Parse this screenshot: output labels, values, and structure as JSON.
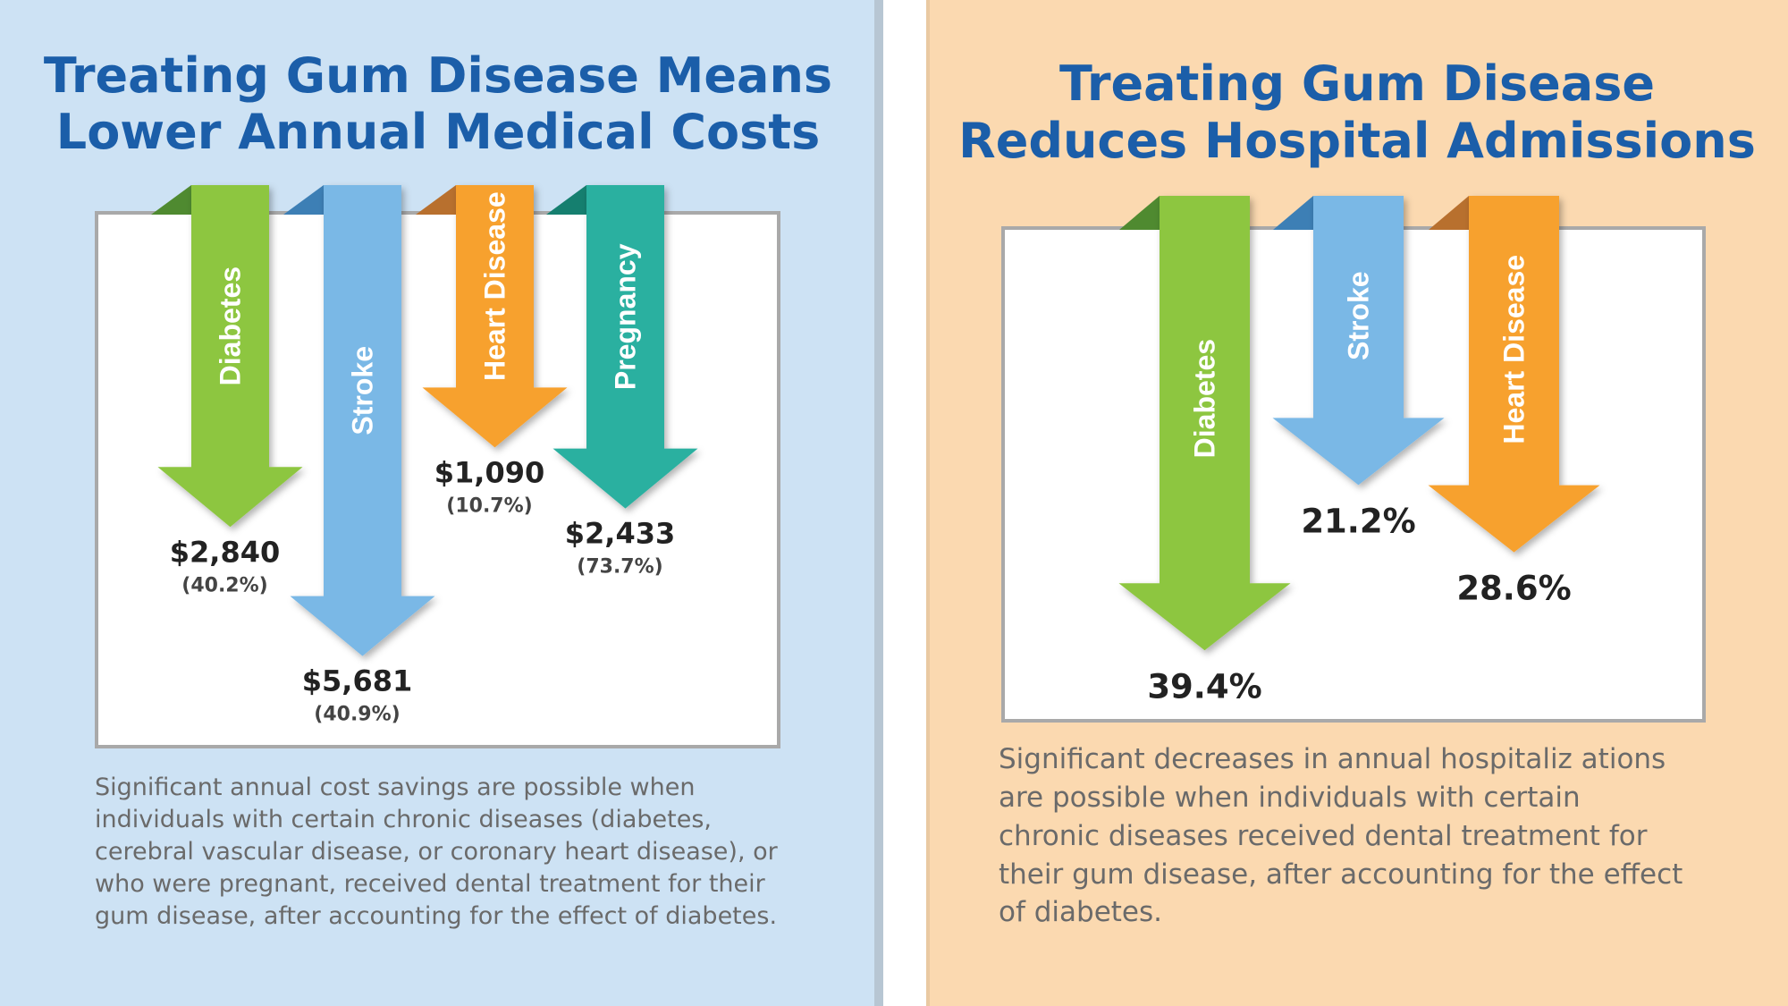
{
  "left_panel": {
    "title_line1": "Treating Gum Disease Means",
    "title_line2": "Lower Annual Medical Costs",
    "caption_lines": [
      "Significant annual cost savings are possible when",
      "individuals with certain chronic diseases (diabetes,",
      "cerebral vascular disease, or coronary heart disease), or",
      "who were pregnant, received dental treatment for their",
      "gum disease, after accounting for the effect of diabetes."
    ],
    "background": "#cde2f4"
  },
  "right_panel": {
    "title_line1": "Treating Gum Disease",
    "title_line2": "Reduces Hospital Admissions",
    "caption_lines": [
      "Significant decreases in annual hospitaliz ations",
      "are possible when individuals with certain",
      "chronic diseases received dental treatment for",
      "their gum disease, after accounting for the effect",
      "of diabetes."
    ],
    "background": "#fbd9b0"
  },
  "chart_data": [
    {
      "type": "bar",
      "orientation": "downward-arrows",
      "title": "Treating Gum Disease Means Lower Annual Medical Costs",
      "categories": [
        "Diabetes",
        "Stroke",
        "Heart Disease",
        "Pregnancy"
      ],
      "values": [
        2840,
        5681,
        1090,
        2433
      ],
      "value_labels": [
        "$2,840",
        "$5,681",
        "$1,090",
        "$2,433"
      ],
      "percent_labels": [
        "(40.2%)",
        "(40.9%)",
        "(10.7%)",
        "(73.7%)"
      ],
      "colors": [
        "#8dc63f",
        "#7ab8e6",
        "#f7a12d",
        "#2bb0a0"
      ],
      "fold_colors": [
        "#4f8a30",
        "#3d7fb5",
        "#b8702e",
        "#157f6f"
      ]
    },
    {
      "type": "bar",
      "orientation": "downward-arrows",
      "title": "Treating Gum Disease Reduces Hospital Admissions",
      "categories": [
        "Diabetes",
        "Stroke",
        "Heart Disease"
      ],
      "values": [
        39.4,
        21.2,
        28.6
      ],
      "value_labels": [
        "39.4%",
        "21.2%",
        "28.6%"
      ],
      "colors": [
        "#8dc63f",
        "#7ab8e6",
        "#f7a12d"
      ],
      "fold_colors": [
        "#4f8a30",
        "#3d7fb5",
        "#b8702e"
      ]
    }
  ]
}
